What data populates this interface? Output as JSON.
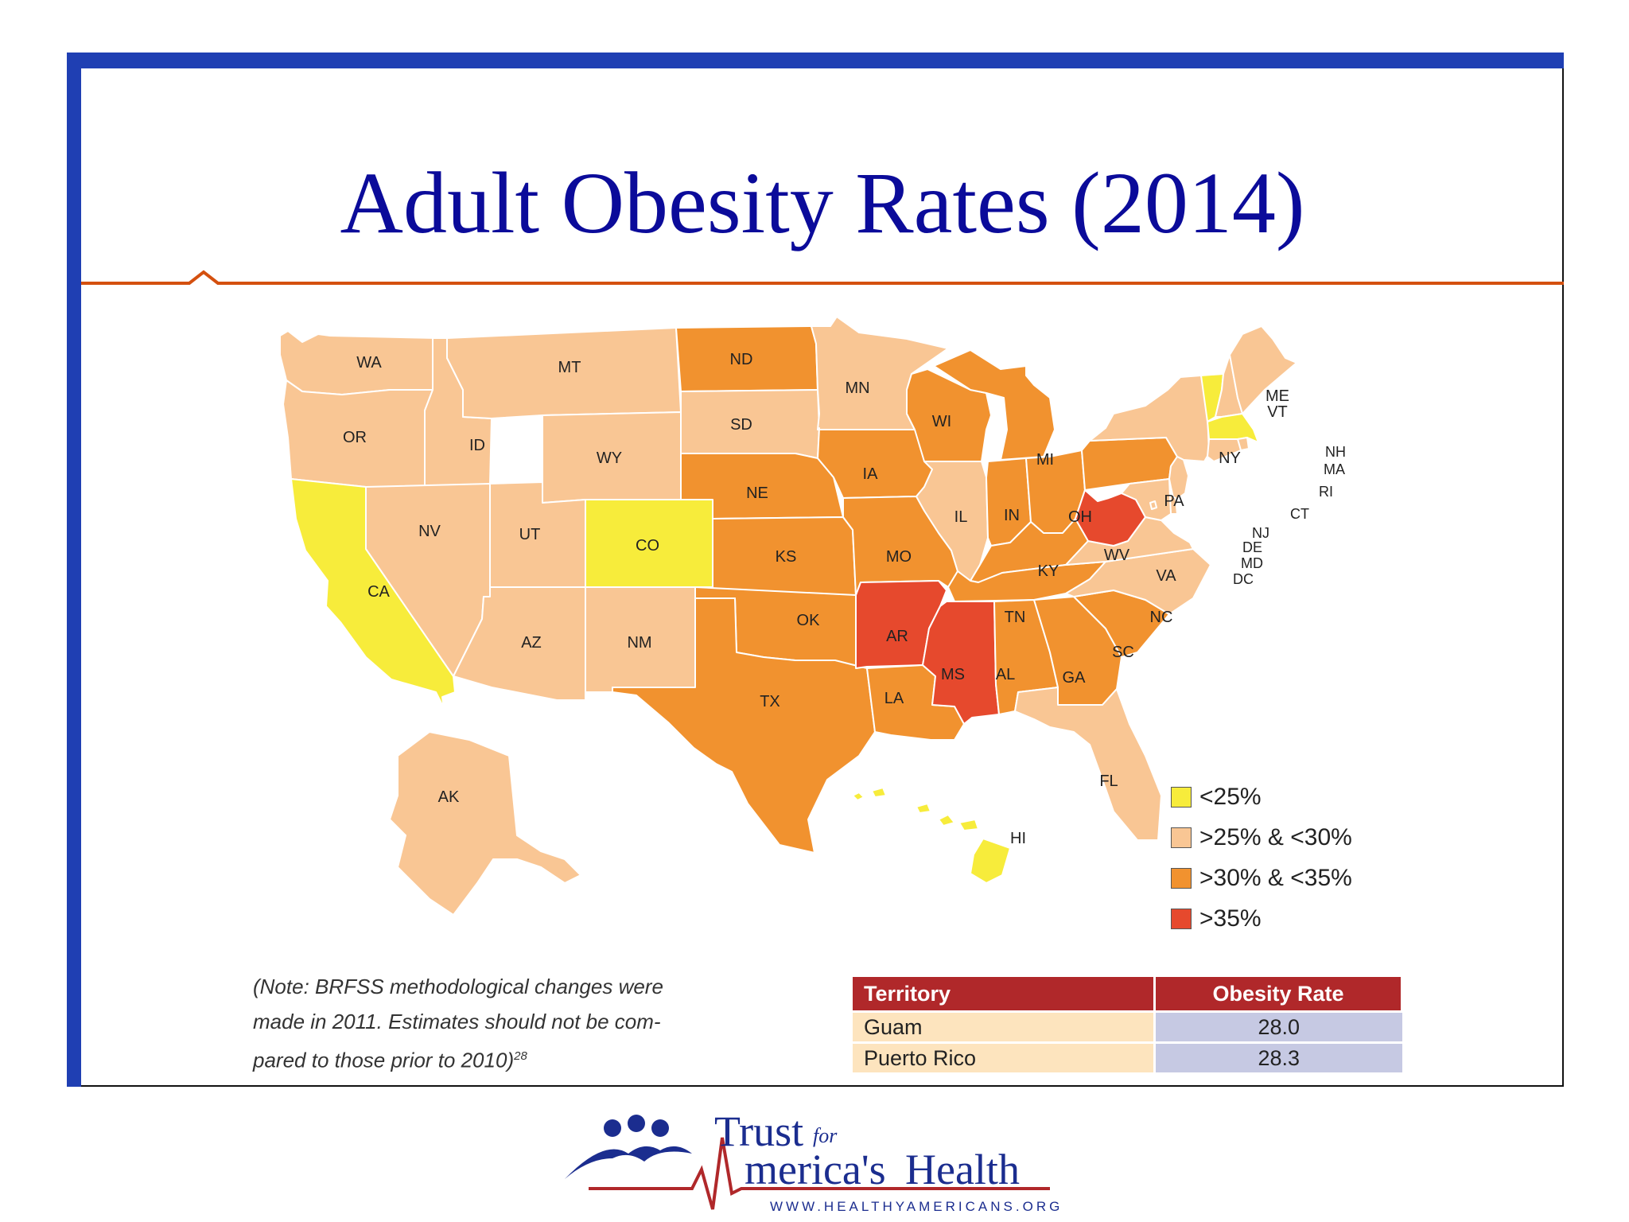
{
  "title": "Adult Obesity Rates (2014)",
  "colors": {
    "lt25": "#f7ec3b",
    "25to30": "#f9c694",
    "30to35": "#f1922f",
    "ge35": "#e6492d",
    "frame_blue": "#1f3fb3",
    "title_blue": "#0b0b9a",
    "rule_orange": "#d4500f"
  },
  "map": {
    "states": [
      {
        "code": "WA",
        "category": "25to30"
      },
      {
        "code": "OR",
        "category": "25to30"
      },
      {
        "code": "CA",
        "category": "lt25"
      },
      {
        "code": "ID",
        "category": "25to30"
      },
      {
        "code": "NV",
        "category": "25to30"
      },
      {
        "code": "MT",
        "category": "25to30"
      },
      {
        "code": "WY",
        "category": "25to30"
      },
      {
        "code": "UT",
        "category": "25to30"
      },
      {
        "code": "AZ",
        "category": "25to30"
      },
      {
        "code": "CO",
        "category": "lt25"
      },
      {
        "code": "NM",
        "category": "25to30"
      },
      {
        "code": "ND",
        "category": "30to35"
      },
      {
        "code": "SD",
        "category": "25to30"
      },
      {
        "code": "NE",
        "category": "30to35"
      },
      {
        "code": "KS",
        "category": "30to35"
      },
      {
        "code": "OK",
        "category": "30to35"
      },
      {
        "code": "TX",
        "category": "30to35"
      },
      {
        "code": "MN",
        "category": "25to30"
      },
      {
        "code": "IA",
        "category": "30to35"
      },
      {
        "code": "MO",
        "category": "30to35"
      },
      {
        "code": "AR",
        "category": "ge35"
      },
      {
        "code": "LA",
        "category": "30to35"
      },
      {
        "code": "WI",
        "category": "30to35"
      },
      {
        "code": "IL",
        "category": "25to30"
      },
      {
        "code": "MI",
        "category": "30to35"
      },
      {
        "code": "IN",
        "category": "30to35"
      },
      {
        "code": "OH",
        "category": "30to35"
      },
      {
        "code": "KY",
        "category": "30to35"
      },
      {
        "code": "TN",
        "category": "30to35"
      },
      {
        "code": "MS",
        "category": "ge35"
      },
      {
        "code": "AL",
        "category": "30to35"
      },
      {
        "code": "GA",
        "category": "30to35"
      },
      {
        "code": "FL",
        "category": "25to30"
      },
      {
        "code": "SC",
        "category": "30to35"
      },
      {
        "code": "NC",
        "category": "25to30"
      },
      {
        "code": "VA",
        "category": "25to30"
      },
      {
        "code": "WV",
        "category": "ge35"
      },
      {
        "code": "PA",
        "category": "30to35"
      },
      {
        "code": "NY",
        "category": "25to30"
      },
      {
        "code": "VT",
        "category": "lt25"
      },
      {
        "code": "ME",
        "category": "25to30"
      },
      {
        "code": "NH",
        "category": "25to30"
      },
      {
        "code": "MA",
        "category": "lt25"
      },
      {
        "code": "RI",
        "category": "25to30"
      },
      {
        "code": "CT",
        "category": "25to30"
      },
      {
        "code": "NJ",
        "category": "25to30"
      },
      {
        "code": "DE",
        "category": "25to30"
      },
      {
        "code": "MD",
        "category": "25to30"
      },
      {
        "code": "DC",
        "category": "25to30"
      },
      {
        "code": "AK",
        "category": "25to30"
      },
      {
        "code": "HI",
        "category": "lt25"
      }
    ]
  },
  "legend": [
    {
      "category": "lt25",
      "label": "<25%"
    },
    {
      "category": "25to30",
      "label": ">25% & <30%"
    },
    {
      "category": "30to35",
      "label": ">30% & <35%"
    },
    {
      "category": "ge35",
      "label": ">35%"
    }
  ],
  "note": {
    "line1": "(Note: BRFSS methodological changes were",
    "line2": "made in 2011. Estimates should not be com-",
    "line3": "pared to those prior to 2010)",
    "superscript": "28"
  },
  "territory_table": {
    "headers": [
      "Territory",
      "Obesity Rate"
    ],
    "rows": [
      {
        "territory": "Guam",
        "rate": "28.0"
      },
      {
        "territory": "Puerto Rico",
        "rate": "28.3"
      }
    ]
  },
  "logo": {
    "trust": "Trust",
    "for": "for",
    "americas": "merica's",
    "health": "Health",
    "url": "WWW.HEALTHYAMERICANS.ORG"
  }
}
